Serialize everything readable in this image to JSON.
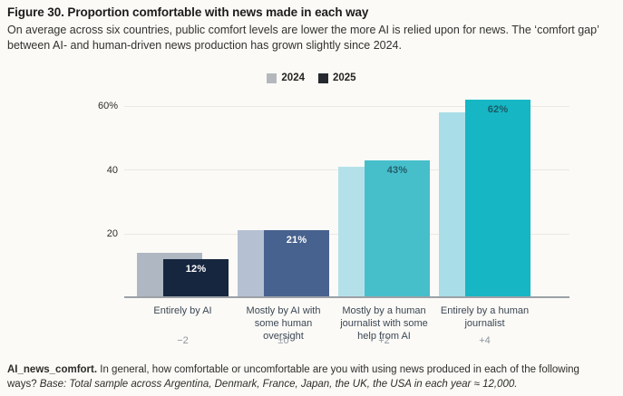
{
  "header": {
    "title": "Figure 30. Proportion comfortable with news made in each way",
    "subtitle": "On average across six countries, public comfort levels are lower the more AI is relied upon for news. The ‘comfort gap’ between AI- and human-driven news production has grown slightly since 2024."
  },
  "legend": [
    {
      "label": "2024",
      "color": "#b4b8bc"
    },
    {
      "label": "2025",
      "color": "#25292f"
    }
  ],
  "chart_data": {
    "type": "bar",
    "title": "Proportion comfortable with news made in each way",
    "categories": [
      "Entirely by AI",
      "Mostly by AI with some human oversight",
      "Mostly by a human journalist with some help from AI",
      "Entirely by a human journalist"
    ],
    "category_lines": [
      [
        "Entirely by AI"
      ],
      [
        "Mostly by AI with",
        "some human",
        "oversight"
      ],
      [
        "Mostly by a human",
        "journalist with some",
        "help from AI"
      ],
      [
        "Entirely by a human",
        "journalist"
      ]
    ],
    "series": [
      {
        "name": "2024",
        "values": [
          14,
          21,
          41,
          58
        ],
        "colors": [
          "#aeb7c2",
          "#b5c0d2",
          "#b4e1e9",
          "#a9dee8"
        ]
      },
      {
        "name": "2025",
        "values": [
          12,
          21,
          43,
          62
        ],
        "colors": [
          "#16263f",
          "#47628e",
          "#46bfcb",
          "#16b6c4"
        ],
        "value_labels": [
          "12%",
          "21%",
          "43%",
          "62%"
        ],
        "value_label_colors": [
          "#ffffff",
          "#ffffff",
          "#245e69",
          "#1c5a64"
        ]
      }
    ],
    "deltas": [
      "−2",
      "±0",
      "+2",
      "+4"
    ],
    "yticks": [
      {
        "value": 60,
        "label": "60%"
      },
      {
        "value": 40,
        "label": "40"
      },
      {
        "value": 20,
        "label": "20"
      }
    ],
    "ylim": [
      0,
      64
    ],
    "grid": true,
    "legend_position": "top-center"
  },
  "footer": {
    "prefix": "AI_news_comfort.",
    "question": " In general, how comfortable or uncomfortable are you with using news produced in each of the following ways? ",
    "base": "Base: Total sample across Argentina, Denmark, France, Japan, the UK, the USA in each year ≈ 12,000."
  }
}
